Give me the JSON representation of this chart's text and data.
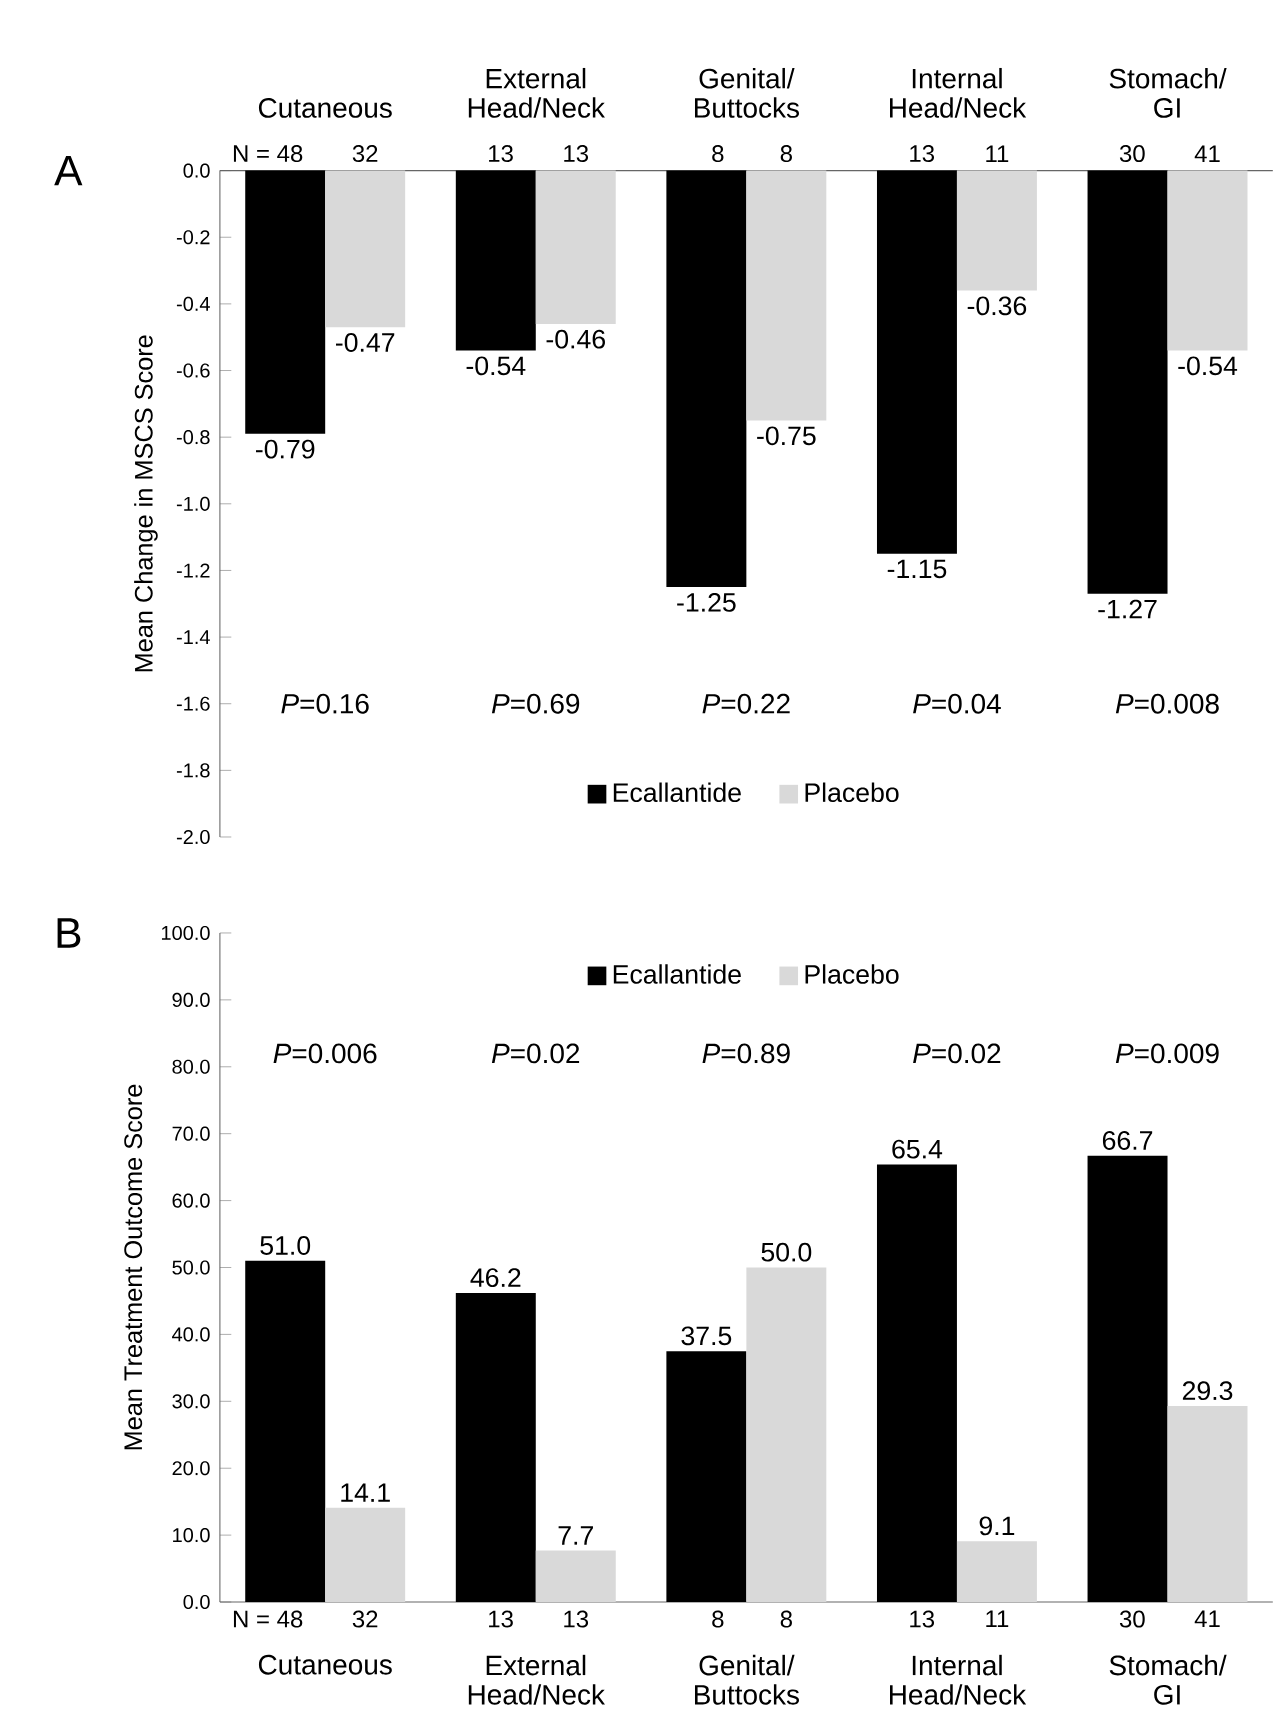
{
  "chart_data": [
    {
      "type": "bar",
      "title": "A",
      "ylabel": "Mean Change in MSCS Score",
      "categories": [
        "Cutaneous",
        "External Head/Neck",
        "Genital/ Buttocks",
        "Internal Head/Neck",
        "Stomach/ GI"
      ],
      "series": [
        {
          "name": "Ecallantide",
          "color": "#000000",
          "values": [
            -0.79,
            -0.54,
            -1.25,
            -1.15,
            -1.27
          ],
          "value_labels": [
            "-0.79",
            "-0.54",
            "-1.25",
            "-1.15",
            "-1.27"
          ]
        },
        {
          "name": "Placebo",
          "color": "#d9d9d9",
          "values": [
            -0.47,
            -0.46,
            -0.75,
            -0.36,
            -0.54
          ],
          "value_labels": [
            "-0.47",
            "-0.46",
            "-0.75",
            "-0.36",
            "-0.54"
          ]
        }
      ],
      "ylim": [
        -2.0,
        0.0
      ],
      "yticks": [
        {
          "value": -2.0,
          "label": "-2.0"
        },
        {
          "value": -1.8,
          "label": "-1.8"
        },
        {
          "value": -1.6,
          "label": "-1.6"
        },
        {
          "value": -1.4,
          "label": "-1.4"
        },
        {
          "value": -1.2,
          "label": "-1.2"
        },
        {
          "value": -1.0,
          "label": "-1.0"
        },
        {
          "value": -0.8,
          "label": "-0.8"
        },
        {
          "value": -0.6,
          "label": "-0.6"
        },
        {
          "value": -0.4,
          "label": "-0.4"
        },
        {
          "value": -0.2,
          "label": "-0.2"
        },
        {
          "value": 0.0,
          "label": "0.0"
        }
      ],
      "legend": "bottom",
      "annotations": [
        "N = 48",
        "32",
        "13",
        "13",
        "8",
        "8",
        "13",
        "11",
        "30",
        "41",
        "*P*=0.16",
        "*P*=0.69",
        "*P*=0.22",
        "*P*=0.04",
        "*P*=0.008"
      ]
    },
    {
      "type": "bar",
      "title": "B",
      "ylabel": "Mean Treatment Outcome Score",
      "categories": [
        "Cutaneous",
        "External Head/Neck",
        "Genital/ Buttocks",
        "Internal Head/Neck",
        "Stomach/ GI"
      ],
      "series": [
        {
          "name": "Ecallantide",
          "color": "#000000",
          "values": [
            51.0,
            46.2,
            37.5,
            65.4,
            66.7
          ],
          "value_labels": [
            "51.0",
            "46.2",
            "37.5",
            "65.4",
            "66.7"
          ]
        },
        {
          "name": "Placebo",
          "color": "#d9d9d9",
          "values": [
            14.1,
            7.7,
            50.0,
            9.1,
            29.3
          ],
          "value_labels": [
            "14.1",
            "7.7",
            "50.0",
            "9.1",
            "29.3"
          ]
        }
      ],
      "ylim": [
        0.0,
        100.0
      ],
      "yticks": [
        {
          "value": 0.0,
          "label": "0.0"
        },
        {
          "value": 10.0,
          "label": "10.0"
        },
        {
          "value": 20.0,
          "label": "20.0"
        },
        {
          "value": 30.0,
          "label": "30.0"
        },
        {
          "value": 40.0,
          "label": "40.0"
        },
        {
          "value": 50.0,
          "label": "50.0"
        },
        {
          "value": 60.0,
          "label": "60.0"
        },
        {
          "value": 70.0,
          "label": "70.0"
        },
        {
          "value": 80.0,
          "label": "80.0"
        },
        {
          "value": 90.0,
          "label": "90.0"
        },
        {
          "value": 100.0,
          "label": "100.0"
        }
      ],
      "legend": "top",
      "annotations": [
        "N = 48",
        "32",
        "13",
        "13",
        "8",
        "8",
        "13",
        "11",
        "30",
        "41",
        "*P*=0.006",
        "*P*=0.02",
        "*P*=0.89",
        "*P*=0.02",
        "*P*=0.009"
      ]
    }
  ]
}
